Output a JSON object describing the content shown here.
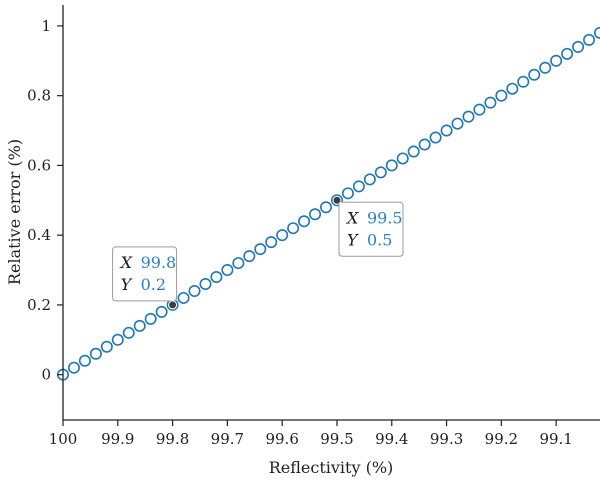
{
  "colors": {
    "series": "#1f77b4",
    "datatip_value": "#2a7fc4",
    "marker": "#3c3c3c"
  },
  "chart_data": {
    "type": "scatter",
    "title": "",
    "xlabel": "Reflectivity (%)",
    "ylabel": "Relative error (%)",
    "x_reversed": true,
    "xlim": [
      100,
      99.02
    ],
    "ylim": [
      -0.13,
      1.06
    ],
    "xticks": [
      100,
      99.9,
      99.8,
      99.7,
      99.6,
      99.5,
      99.4,
      99.3,
      99.2,
      99.1
    ],
    "xtick_labels": [
      "100",
      "99.9",
      "99.8",
      "99.7",
      "99.6",
      "99.5",
      "99.4",
      "99.3",
      "99.2",
      "99.1"
    ],
    "yticks": [
      0,
      0.2,
      0.4,
      0.6,
      0.8,
      1
    ],
    "ytick_labels": [
      "0",
      "0.2",
      "0.4",
      "0.6",
      "0.8",
      "1"
    ],
    "grid": false,
    "marker": "open-circle",
    "series": [
      {
        "x": [
          100,
          99.98,
          99.96,
          99.94,
          99.92,
          99.9,
          99.88,
          99.86,
          99.84,
          99.82,
          99.8,
          99.78,
          99.76,
          99.74,
          99.72,
          99.7,
          99.68,
          99.66,
          99.64,
          99.62,
          99.6,
          99.58,
          99.56,
          99.54,
          99.52,
          99.5,
          99.48,
          99.46,
          99.44,
          99.42,
          99.4,
          99.38,
          99.36,
          99.34,
          99.32,
          99.3,
          99.28,
          99.26,
          99.24,
          99.22,
          99.2,
          99.18,
          99.16,
          99.14,
          99.12,
          99.1,
          99.08,
          99.06,
          99.04,
          99.02
        ],
        "y": [
          0,
          0.02,
          0.04,
          0.06,
          0.08,
          0.1,
          0.12,
          0.14,
          0.16,
          0.18,
          0.2,
          0.22,
          0.24,
          0.26,
          0.28,
          0.3,
          0.32,
          0.34,
          0.36,
          0.38,
          0.4,
          0.42,
          0.44,
          0.46,
          0.48,
          0.5,
          0.52,
          0.54,
          0.56,
          0.58,
          0.6,
          0.62,
          0.64,
          0.66,
          0.68,
          0.7,
          0.72,
          0.74,
          0.76,
          0.78,
          0.8,
          0.82,
          0.84,
          0.86,
          0.88,
          0.9,
          0.92,
          0.94,
          0.96,
          0.98
        ]
      }
    ],
    "annotations": [
      {
        "x_key": "X",
        "x_text": "99.8",
        "y_key": "Y",
        "y_text": "0.2",
        "x": 99.8,
        "y": 0.2,
        "placement": "above-left"
      },
      {
        "x_key": "X",
        "x_text": "99.5",
        "y_key": "Y",
        "y_text": "0.5",
        "x": 99.5,
        "y": 0.5,
        "placement": "below-right"
      }
    ]
  }
}
